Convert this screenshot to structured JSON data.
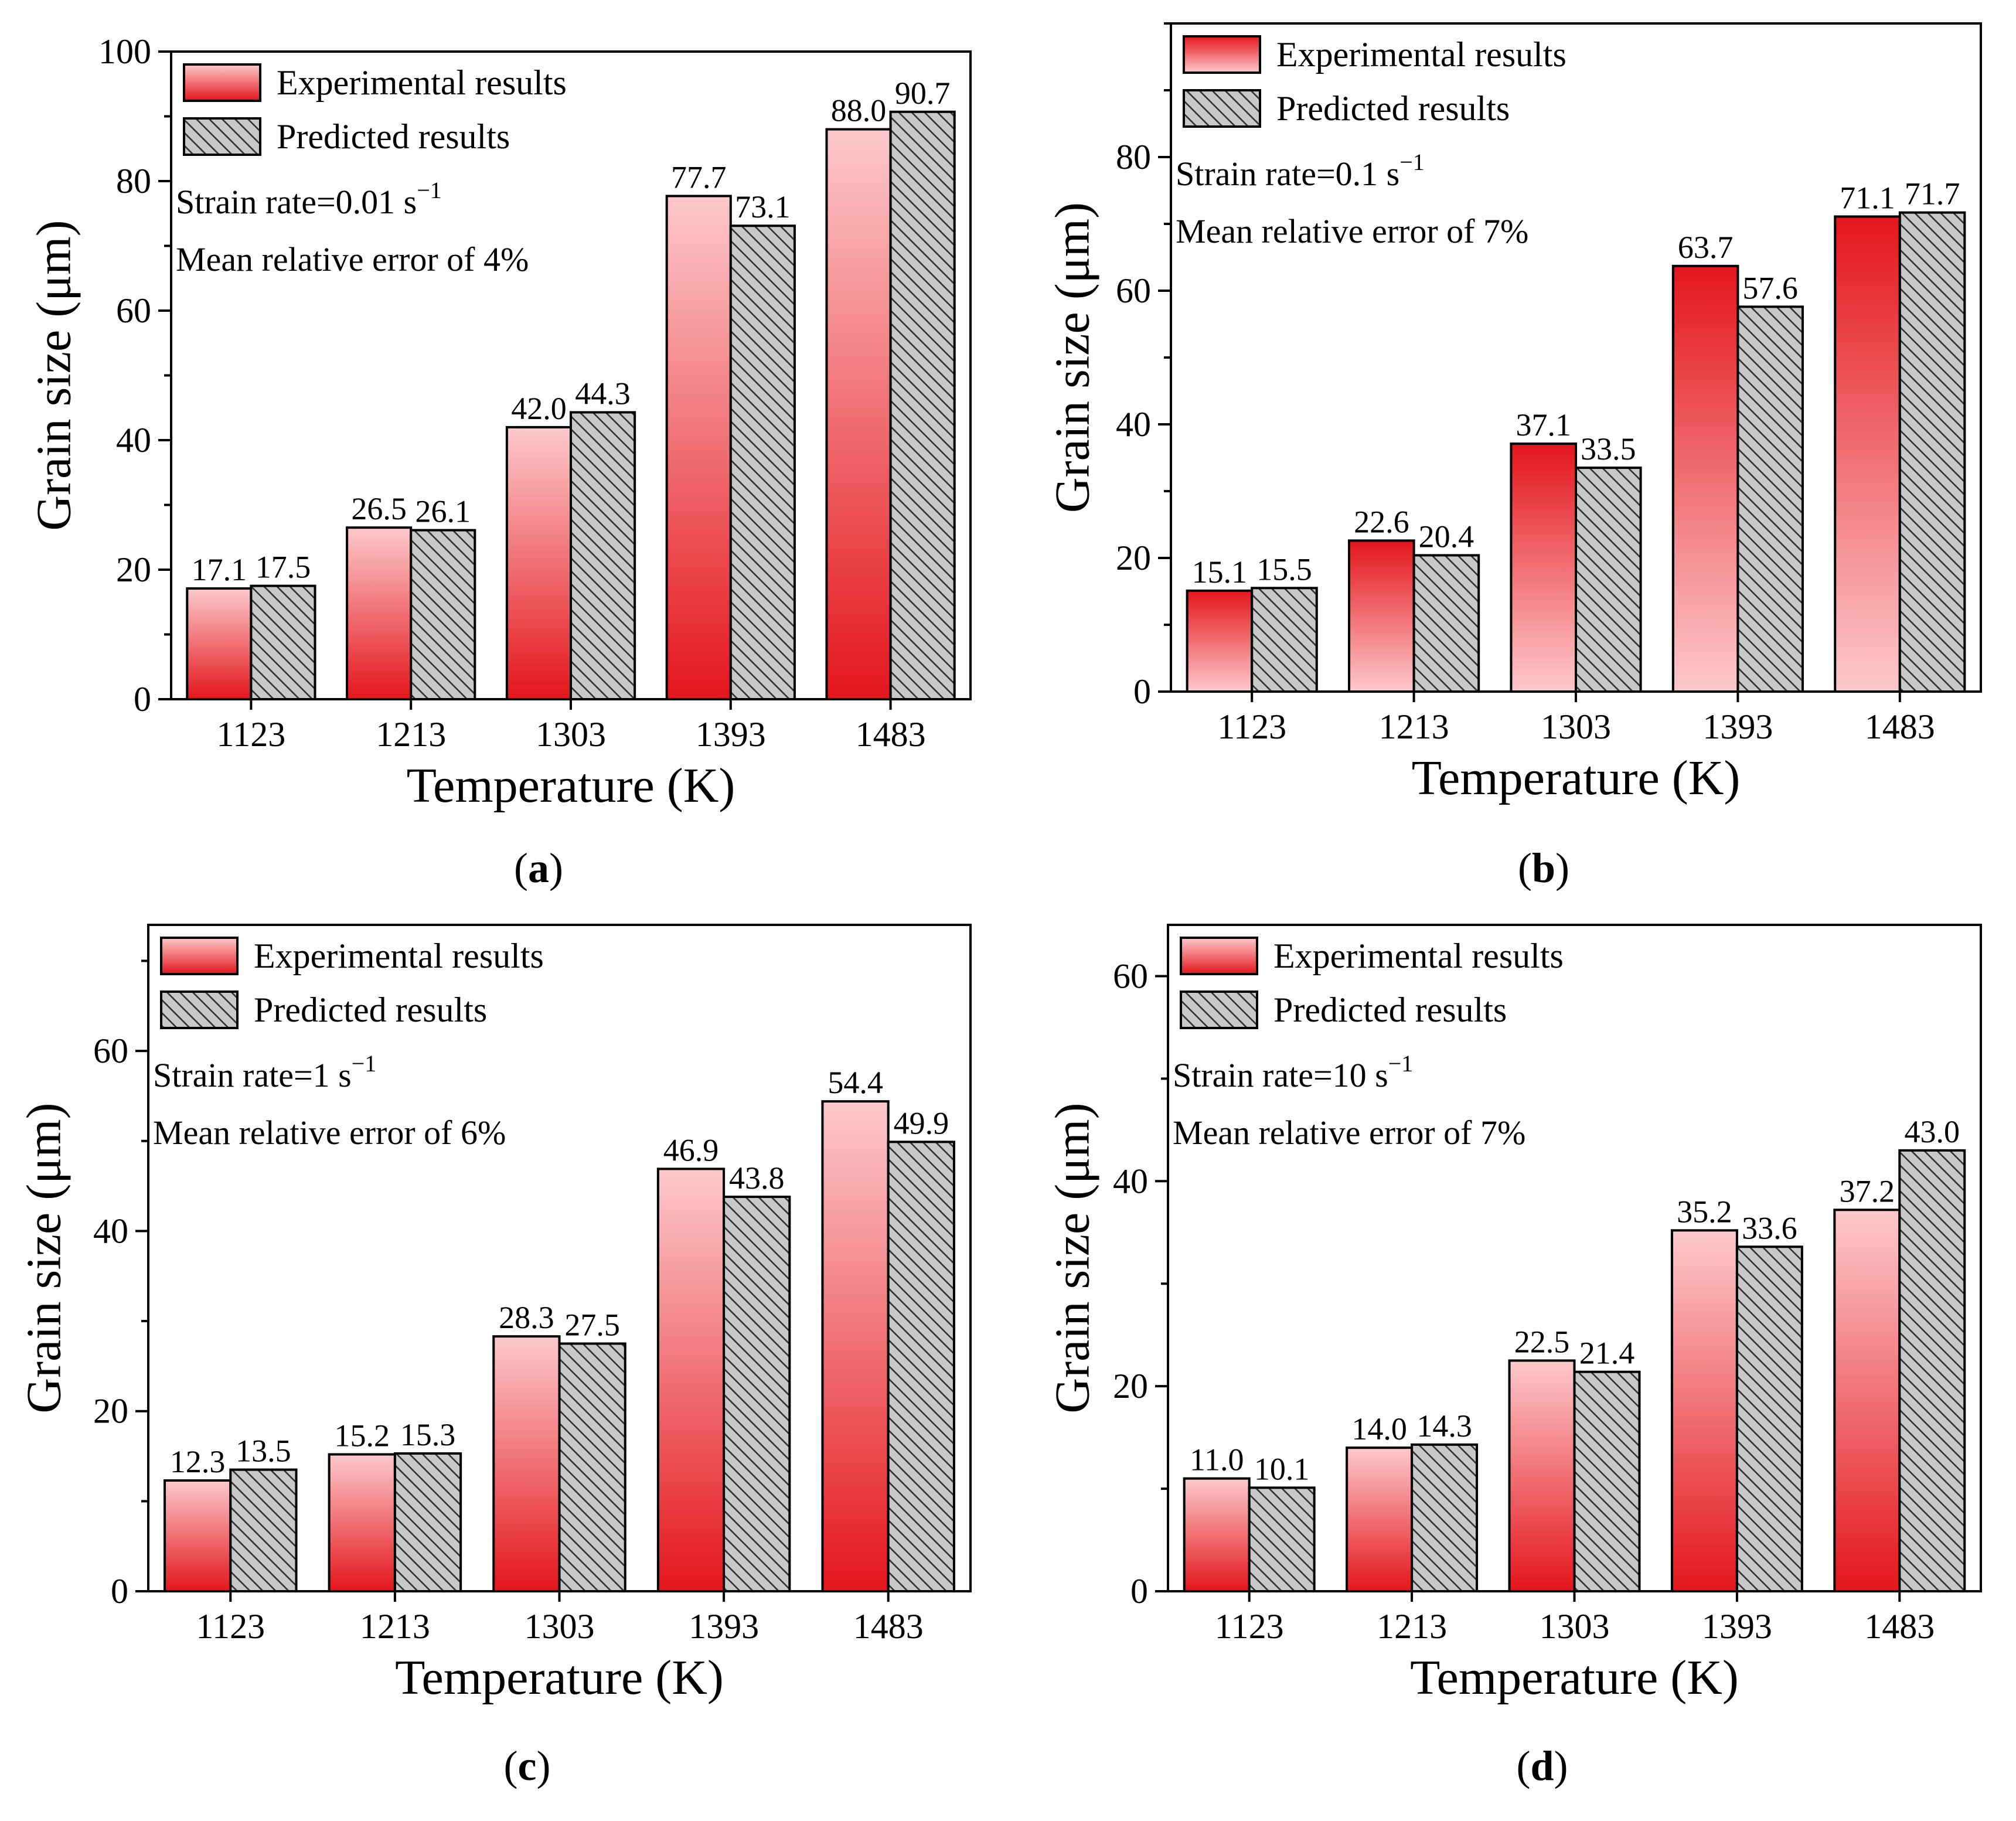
{
  "colors": {
    "experimental_top": "#fdc9cb",
    "experimental_bottom": "#e3161c",
    "predicted_fill": "#c8c8c8",
    "hatch": "#333333",
    "axis": "#000000"
  },
  "chart_data": [
    {
      "type": "bar",
      "panel": "a",
      "panel_label": "a",
      "xlabel": "Temperature (K)",
      "ylabel": "Grain size (μm)",
      "categories": [
        "1123",
        "1213",
        "1303",
        "1393",
        "1483"
      ],
      "ylim": [
        0,
        100
      ],
      "yticks": [
        0,
        20,
        40,
        60,
        80,
        100
      ],
      "experimental_gradient": "light-top",
      "legend_position": "top-left",
      "annotation_1": "Strain rate=0.01 s",
      "annotation_sup": "−1",
      "annotation_2": "Mean relative error of 4%",
      "series": [
        {
          "name": "Experimental results",
          "values": [
            17.1,
            26.5,
            42.0,
            77.7,
            88.0
          ],
          "labels": [
            "17.1",
            "26.5",
            "42.0",
            "77.7",
            "88.0"
          ]
        },
        {
          "name": "Predicted results",
          "values": [
            17.5,
            26.1,
            44.3,
            73.1,
            90.7
          ],
          "labels": [
            "17.5",
            "26.1",
            "44.3",
            "73.1",
            "90.7"
          ]
        }
      ]
    },
    {
      "type": "bar",
      "panel": "b",
      "panel_label": "b",
      "xlabel": "Temperature (K)",
      "ylabel": "Grain size (μm)",
      "categories": [
        "1123",
        "1213",
        "1303",
        "1393",
        "1483"
      ],
      "ylim": [
        0,
        100
      ],
      "yticks": [
        0,
        20,
        40,
        60,
        80
      ],
      "experimental_gradient": "dark-top",
      "legend_position": "top-left",
      "annotation_1": "Strain rate=0.1 s",
      "annotation_sup": "−1",
      "annotation_2": "Mean relative error of 7%",
      "series": [
        {
          "name": "Experimental results",
          "values": [
            15.1,
            22.6,
            37.1,
            63.7,
            71.1
          ],
          "labels": [
            "15.1",
            "22.6",
            "37.1",
            "63.7",
            "71.1"
          ]
        },
        {
          "name": "Predicted results",
          "values": [
            15.5,
            20.4,
            33.5,
            57.6,
            71.7
          ],
          "labels": [
            "15.5",
            "20.4",
            "33.5",
            "57.6",
            "71.7"
          ]
        }
      ]
    },
    {
      "type": "bar",
      "panel": "c",
      "panel_label": "c",
      "xlabel": "Temperature (K)",
      "ylabel": "Grain size (μm)",
      "categories": [
        "1123",
        "1213",
        "1303",
        "1393",
        "1483"
      ],
      "ylim": [
        0,
        74
      ],
      "yticks": [
        0,
        20,
        40,
        60
      ],
      "experimental_gradient": "light-top",
      "legend_position": "top-left",
      "annotation_1": "Strain rate=1 s",
      "annotation_sup": "−1",
      "annotation_2": "Mean relative error of 6%",
      "series": [
        {
          "name": "Experimental results",
          "values": [
            12.3,
            15.2,
            28.3,
            46.9,
            54.4
          ],
          "labels": [
            "12.3",
            "15.2",
            "28.3",
            "46.9",
            "54.4"
          ]
        },
        {
          "name": "Predicted results",
          "values": [
            13.5,
            15.3,
            27.5,
            43.8,
            49.9
          ],
          "labels": [
            "13.5",
            "15.3",
            "27.5",
            "43.8",
            "49.9"
          ]
        }
      ]
    },
    {
      "type": "bar",
      "panel": "d",
      "panel_label": "d",
      "xlabel": "Temperature (K)",
      "ylabel": "Grain size (μm)",
      "categories": [
        "1123",
        "1213",
        "1303",
        "1393",
        "1483"
      ],
      "ylim": [
        0,
        65
      ],
      "yticks": [
        0,
        20,
        40,
        60
      ],
      "experimental_gradient": "light-top",
      "legend_position": "top-left",
      "annotation_1": "Strain rate=10 s",
      "annotation_sup": "−1",
      "annotation_2": "Mean relative error of 7%",
      "series": [
        {
          "name": "Experimental results",
          "values": [
            11.0,
            14.0,
            22.5,
            35.2,
            37.2
          ],
          "labels": [
            "11.0",
            "14.0",
            "22.5",
            "35.2",
            "37.2"
          ]
        },
        {
          "name": "Predicted results",
          "values": [
            10.1,
            14.3,
            21.4,
            33.6,
            43.0
          ],
          "labels": [
            "10.1",
            "14.3",
            "21.4",
            "33.6",
            "43.0"
          ]
        }
      ]
    }
  ]
}
